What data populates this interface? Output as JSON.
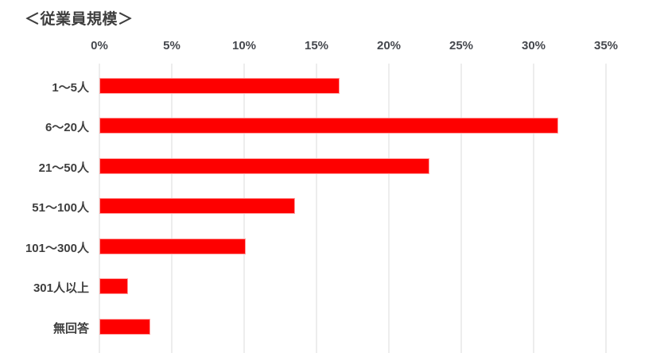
{
  "chart": {
    "title": "＜従業員規模＞"
  },
  "chart_data": {
    "type": "bar",
    "orientation": "horizontal",
    "title": "＜従業員規模＞",
    "categories": [
      "1〜5人",
      "6〜20人",
      "21〜50人",
      "51〜100人",
      "101〜300人",
      "301人以上",
      "無回答"
    ],
    "values": [
      16.6,
      31.7,
      22.8,
      13.5,
      10.1,
      2.0,
      3.5
    ],
    "unit": "%",
    "x_ticks": [
      "0%",
      "5%",
      "10%",
      "15%",
      "20%",
      "25%",
      "30%",
      "35%"
    ],
    "x_tick_values": [
      0,
      5,
      10,
      15,
      20,
      25,
      30,
      35
    ],
    "xlim": [
      0,
      35
    ],
    "xlabel": "",
    "ylabel": "",
    "axis_position": "top",
    "grid": true,
    "grid_direction": "vertical",
    "legend": "none",
    "data_labels": "none",
    "colors": {
      "bar": "#fe0000",
      "grid": "#ededed",
      "category_text": "#3e3e3e",
      "tick_text": "#45484e",
      "title_text": "#3e3e3e",
      "background": "#ffffff"
    }
  }
}
